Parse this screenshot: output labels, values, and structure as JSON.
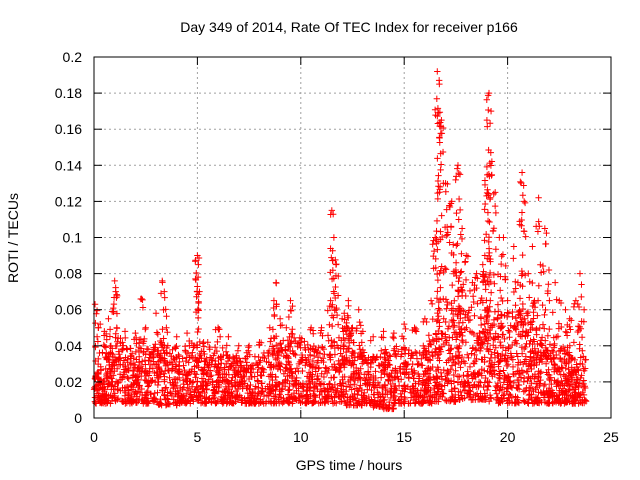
{
  "chart_data": {
    "type": "scatter",
    "title": "Day 349 of 2014, Rate Of TEC Index for receiver p166",
    "xlabel": "GPS time / hours",
    "ylabel": "ROTI / TECUs",
    "xlim": [
      0,
      25
    ],
    "ylim": [
      0,
      0.2
    ],
    "xticks": [
      0,
      5,
      10,
      15,
      20,
      25
    ],
    "yticks": [
      0,
      0.02,
      0.04,
      0.06,
      0.08,
      0.1,
      0.12,
      0.14,
      0.16,
      0.18,
      0.2
    ],
    "xtick_labels": [
      "0",
      "5",
      "10",
      "15",
      "20",
      "25"
    ],
    "ytick_labels": [
      "0",
      "0.02",
      "0.04",
      "0.06",
      "0.08",
      "0.1",
      "0.12",
      "0.14",
      "0.16",
      "0.18",
      "0.2"
    ],
    "grid": true,
    "marker": "+",
    "series": [
      {
        "name": "ROTI",
        "color": "#ff0000",
        "x": [
          0.05,
          0.15,
          0.3,
          0.5,
          0.7,
          1.0,
          1.05,
          1.1,
          1.5,
          2.0,
          2.3,
          2.5,
          3.0,
          3.3,
          3.4,
          3.5,
          4.0,
          4.5,
          5.0,
          5.05,
          5.1,
          5.3,
          5.5,
          6.0,
          6.1,
          6.5,
          7.0,
          7.5,
          8.0,
          8.5,
          8.7,
          8.8,
          9.0,
          9.3,
          9.5,
          9.6,
          10.0,
          10.5,
          11.0,
          11.4,
          11.5,
          11.6,
          11.7,
          12.0,
          12.1,
          12.3,
          12.5,
          12.8,
          13.0,
          13.5,
          14.0,
          14.5,
          15.0,
          15.5,
          16.0,
          16.3,
          16.5,
          16.6,
          16.7,
          16.8,
          17.0,
          17.3,
          17.5,
          17.6,
          17.7,
          17.8,
          18.0,
          18.3,
          18.5,
          18.7,
          18.8,
          18.9,
          19.0,
          19.1,
          19.2,
          19.4,
          19.6,
          19.8,
          20.0,
          20.3,
          20.5,
          20.7,
          20.8,
          21.0,
          21.2,
          21.3,
          21.5,
          21.8,
          22.0,
          22.3,
          22.5,
          22.8,
          23.0,
          23.3,
          23.5,
          23.7
        ],
        "values": [
          0.063,
          0.045,
          0.052,
          0.048,
          0.055,
          0.076,
          0.07,
          0.05,
          0.048,
          0.047,
          0.066,
          0.05,
          0.058,
          0.076,
          0.07,
          0.05,
          0.045,
          0.047,
          0.09,
          0.085,
          0.07,
          0.042,
          0.042,
          0.05,
          0.045,
          0.045,
          0.04,
          0.04,
          0.042,
          0.05,
          0.065,
          0.075,
          0.055,
          0.05,
          0.065,
          0.062,
          0.042,
          0.05,
          0.05,
          0.062,
          0.115,
          0.1,
          0.085,
          0.055,
          0.058,
          0.065,
          0.05,
          0.06,
          0.048,
          0.045,
          0.048,
          0.047,
          0.052,
          0.05,
          0.055,
          0.065,
          0.1,
          0.192,
          0.185,
          0.165,
          0.13,
          0.12,
          0.082,
          0.14,
          0.135,
          0.105,
          0.09,
          0.075,
          0.08,
          0.065,
          0.085,
          0.09,
          0.165,
          0.18,
          0.17,
          0.125,
          0.1,
          0.1,
          0.065,
          0.095,
          0.075,
          0.136,
          0.12,
          0.08,
          0.095,
          0.065,
          0.122,
          0.105,
          0.082,
          0.075,
          0.065,
          0.06,
          0.055,
          0.065,
          0.08,
          0.06
        ],
        "density": {
          "hour_step": 0.5,
          "baseline_low": [
            0.008,
            0.008,
            0.009,
            0.008,
            0.008,
            0.008,
            0.007,
            0.007,
            0.008,
            0.008,
            0.008,
            0.008,
            0.008,
            0.008,
            0.008,
            0.008,
            0.008,
            0.008,
            0.008,
            0.008,
            0.008,
            0.008,
            0.008,
            0.008,
            0.007,
            0.007,
            0.008,
            0.006,
            0.005,
            0.008,
            0.008,
            0.008,
            0.008,
            0.009,
            0.009,
            0.01,
            0.01,
            0.01,
            0.009,
            0.008,
            0.008,
            0.008,
            0.008,
            0.008,
            0.008,
            0.008,
            0.008,
            0.008
          ],
          "baseline_high": [
            0.035,
            0.04,
            0.045,
            0.04,
            0.045,
            0.042,
            0.042,
            0.04,
            0.04,
            0.042,
            0.04,
            0.04,
            0.035,
            0.035,
            0.035,
            0.035,
            0.038,
            0.04,
            0.045,
            0.048,
            0.045,
            0.04,
            0.042,
            0.045,
            0.05,
            0.042,
            0.035,
            0.035,
            0.038,
            0.04,
            0.038,
            0.04,
            0.045,
            0.06,
            0.065,
            0.065,
            0.06,
            0.06,
            0.062,
            0.06,
            0.058,
            0.06,
            0.05,
            0.045,
            0.04,
            0.04,
            0.035,
            0.035
          ]
        }
      }
    ]
  }
}
